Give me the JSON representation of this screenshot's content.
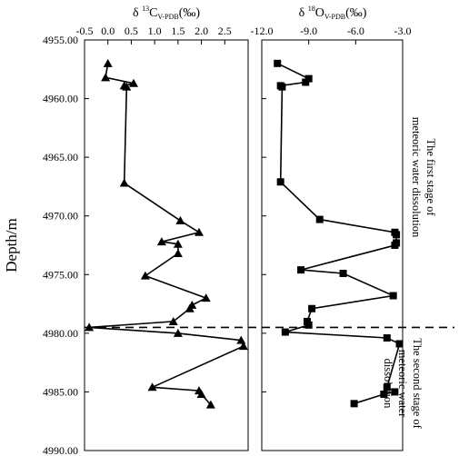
{
  "chart_data": {
    "type": "scatter",
    "ylabel": "Depth/m",
    "y_reversed": true,
    "ylim": [
      4955.0,
      4990.0
    ],
    "y_ticks": [
      "4955.00",
      "4960.00",
      "4965.00",
      "4970.00",
      "4975.00",
      "4980.00",
      "4985.00",
      "4990.00"
    ],
    "y_tick_values": [
      4955,
      4960,
      4965,
      4970,
      4975,
      4980,
      4985,
      4990
    ],
    "boundary_depth": 4979.5,
    "panels": [
      {
        "title_prefix": "δ ",
        "title_sup": "13",
        "title_element": "C",
        "title_sub": "V-PDB",
        "title_unit": "(‰)",
        "xlim": [
          -0.5,
          3.0
        ],
        "x_ticks": [
          "-0.5",
          "0.0",
          "0.5",
          "1.0",
          "1.5",
          "2.0",
          "2.5",
          "3.0"
        ],
        "x_tick_values": [
          -0.5,
          0.0,
          0.5,
          1.0,
          1.5,
          2.0,
          2.5,
          3.0
        ],
        "x_label_values": [
          -0.5,
          0.0,
          0.5,
          1.0,
          1.5,
          2.0,
          2.5
        ],
        "marker": "triangle",
        "x": [
          0.0,
          -0.05,
          0.55,
          0.35,
          0.4,
          0.35,
          1.55,
          1.95,
          1.15,
          1.5,
          1.5,
          0.8,
          2.1,
          1.8,
          1.75,
          1.4,
          -0.4,
          1.5,
          2.85,
          2.9,
          0.95,
          1.95,
          2.0,
          2.2
        ],
        "y": [
          4957.0,
          4958.2,
          4958.7,
          4958.9,
          4959.0,
          4967.2,
          4970.4,
          4971.4,
          4972.2,
          4972.4,
          4973.2,
          4975.1,
          4977.0,
          4977.6,
          4977.9,
          4979.0,
          4979.5,
          4980.0,
          4980.6,
          4981.1,
          4984.6,
          4984.9,
          4985.2,
          4986.1
        ]
      },
      {
        "title_prefix": "δ ",
        "title_sup": "18",
        "title_element": "O",
        "title_sub": "V-PDB",
        "title_unit": "(‰)",
        "xlim": [
          -12.0,
          -3.0
        ],
        "x_ticks": [
          "-12.0",
          "-9.0",
          "-6.0",
          "-3.0"
        ],
        "x_tick_values": [
          -12.0,
          -9.0,
          -6.0,
          -3.0
        ],
        "x_label_values": [
          -12.0,
          -9.0,
          -6.0,
          -3.0
        ],
        "marker": "square",
        "x": [
          -11.0,
          -9.0,
          -9.2,
          -10.8,
          -10.7,
          -10.8,
          -8.3,
          -3.5,
          -3.4,
          -3.4,
          -3.5,
          -9.5,
          -6.8,
          -3.6,
          -8.8,
          -9.1,
          -9.0,
          -10.5,
          -4.0,
          -3.2,
          -4.0,
          -3.5,
          -4.2,
          -6.1
        ],
        "y": [
          4957.0,
          4958.3,
          4958.6,
          4958.9,
          4959.0,
          4967.1,
          4970.3,
          4971.4,
          4971.6,
          4972.3,
          4972.5,
          4974.6,
          4974.9,
          4976.8,
          4977.9,
          4979.0,
          4979.3,
          4979.9,
          4980.4,
          4980.9,
          4984.6,
          4985.0,
          4985.2,
          4986.0
        ]
      }
    ],
    "annotations": [
      {
        "lines": [
          "The first stage of",
          "meteoric water dissolution"
        ]
      },
      {
        "lines": [
          "The second stage of",
          "meteoric water",
          "dissolution"
        ]
      }
    ]
  }
}
